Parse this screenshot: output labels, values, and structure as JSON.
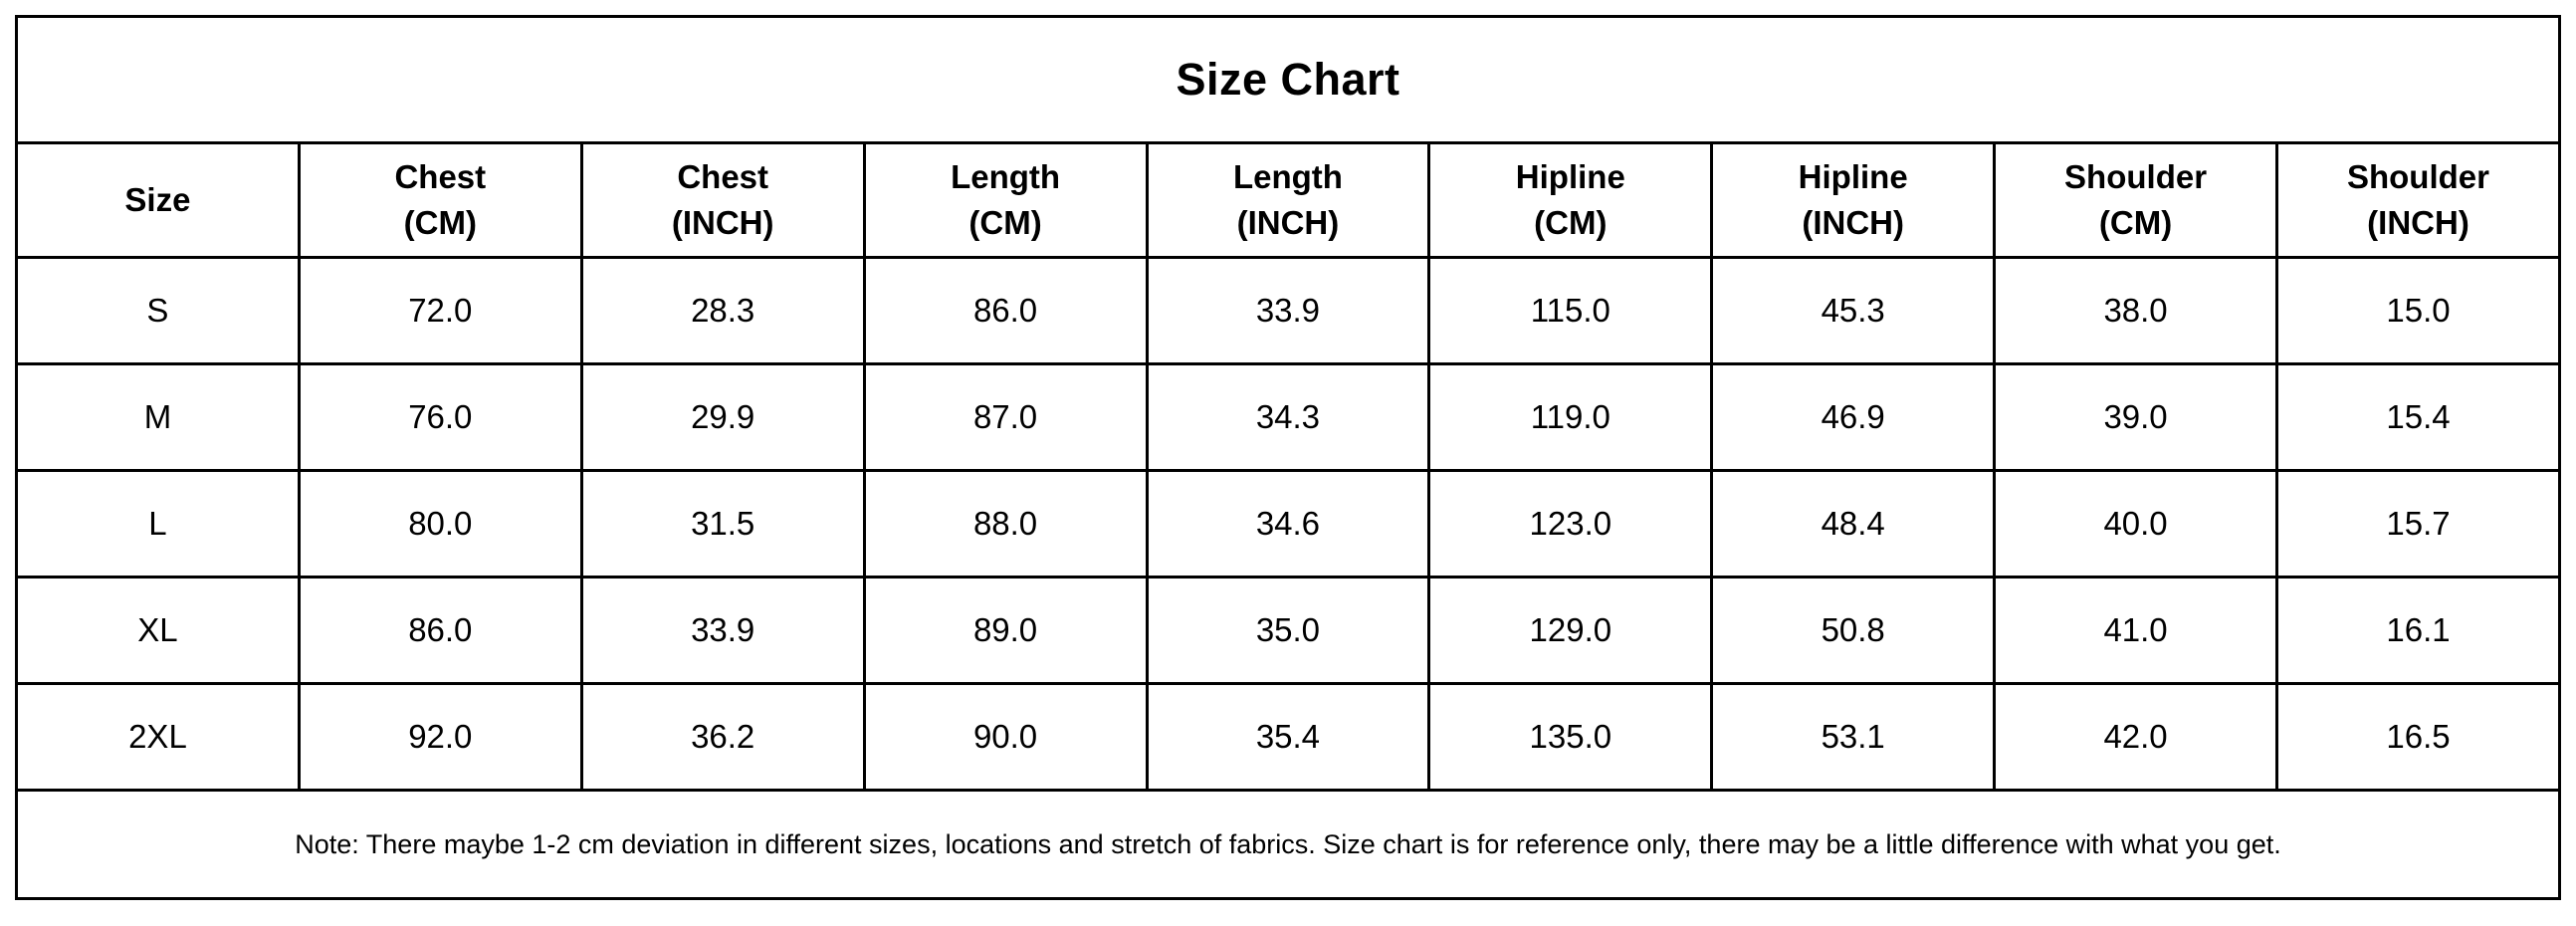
{
  "title": "Size Chart",
  "table": {
    "columns": [
      "Size",
      "Chest\n(CM)",
      "Chest\n(INCH)",
      "Length\n(CM)",
      "Length\n(INCH)",
      "Hipline\n(CM)",
      "Hipline\n(INCH)",
      "Shoulder\n(CM)",
      "Shoulder\n(INCH)"
    ],
    "rows": [
      [
        "S",
        "72.0",
        "28.3",
        "86.0",
        "33.9",
        "115.0",
        "45.3",
        "38.0",
        "15.0"
      ],
      [
        "M",
        "76.0",
        "29.9",
        "87.0",
        "34.3",
        "119.0",
        "46.9",
        "39.0",
        "15.4"
      ],
      [
        "L",
        "80.0",
        "31.5",
        "88.0",
        "34.6",
        "123.0",
        "48.4",
        "40.0",
        "15.7"
      ],
      [
        "XL",
        "86.0",
        "33.9",
        "89.0",
        "35.0",
        "129.0",
        "50.8",
        "41.0",
        "16.1"
      ],
      [
        "2XL",
        "92.0",
        "36.2",
        "90.0",
        "35.4",
        "135.0",
        "53.1",
        "42.0",
        "16.5"
      ]
    ]
  },
  "note": "Note: There maybe 1-2 cm deviation in different sizes, locations and stretch of fabrics. Size chart is for reference only, there may be a little difference with what you get.",
  "colors": {
    "border": "#000000",
    "text": "#000000",
    "background": "#ffffff"
  },
  "chart_data": {
    "type": "table",
    "title": "Size Chart",
    "columns": [
      "Size",
      "Chest (CM)",
      "Chest (INCH)",
      "Length (CM)",
      "Length (INCH)",
      "Hipline (CM)",
      "Hipline (INCH)",
      "Shoulder (CM)",
      "Shoulder (INCH)"
    ],
    "rows": [
      {
        "size": "S",
        "chest_cm": 72.0,
        "chest_inch": 28.3,
        "length_cm": 86.0,
        "length_inch": 33.9,
        "hipline_cm": 115.0,
        "hipline_inch": 45.3,
        "shoulder_cm": 38.0,
        "shoulder_inch": 15.0
      },
      {
        "size": "M",
        "chest_cm": 76.0,
        "chest_inch": 29.9,
        "length_cm": 87.0,
        "length_inch": 34.3,
        "hipline_cm": 119.0,
        "hipline_inch": 46.9,
        "shoulder_cm": 39.0,
        "shoulder_inch": 15.4
      },
      {
        "size": "L",
        "chest_cm": 80.0,
        "chest_inch": 31.5,
        "length_cm": 88.0,
        "length_inch": 34.6,
        "hipline_cm": 123.0,
        "hipline_inch": 48.4,
        "shoulder_cm": 40.0,
        "shoulder_inch": 15.7
      },
      {
        "size": "XL",
        "chest_cm": 86.0,
        "chest_inch": 33.9,
        "length_cm": 89.0,
        "length_inch": 35.0,
        "hipline_cm": 129.0,
        "hipline_inch": 50.8,
        "shoulder_cm": 41.0,
        "shoulder_inch": 16.1
      },
      {
        "size": "2XL",
        "chest_cm": 92.0,
        "chest_inch": 36.2,
        "length_cm": 90.0,
        "length_inch": 35.4,
        "hipline_cm": 135.0,
        "hipline_inch": 53.1,
        "shoulder_cm": 42.0,
        "shoulder_inch": 16.5
      }
    ],
    "note": "Note: There maybe 1-2 cm deviation in different sizes, locations and stretch of fabrics. Size chart is for reference only, there may be a little difference with what you get."
  }
}
